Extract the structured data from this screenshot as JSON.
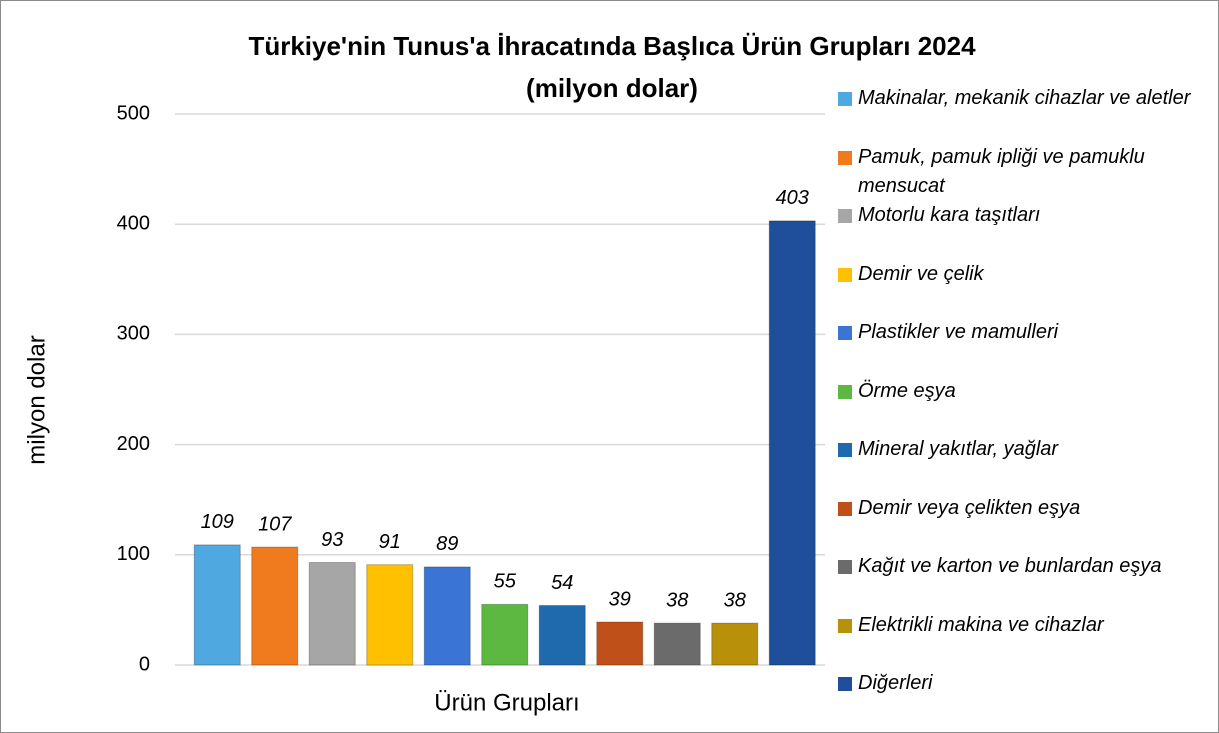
{
  "chart_data": {
    "type": "bar",
    "title": "Türkiye'nin Tunus'a İhracatında Başlıca Ürün Grupları 2024",
    "subtitle": "(milyon dolar)",
    "y_label": "milyon dolar",
    "x_label": "Ürün Grupları",
    "categories": [
      "Makinalar, mekanik cihazlar ve aletler",
      "Pamuk, pamuk ipliği ve pamuklu mensucat",
      "Motorlu kara taşıtları",
      "Demir ve çelik",
      "Plastikler ve mamulleri",
      "Örme eşya",
      "Mineral yakıtlar, yağlar",
      "Demir veya çelikten eşya",
      "Kağıt ve karton ve bunlardan eşya",
      "Elektrikli makina ve cihazlar",
      "Diğerleri"
    ],
    "values": [
      109,
      107,
      93,
      91,
      89,
      55,
      54,
      39,
      38,
      38,
      403
    ],
    "colors": [
      "#4fa8e0",
      "#f07a1e",
      "#a6a6a6",
      "#ffc000",
      "#3a75d6",
      "#5cb840",
      "#1f6aad",
      "#c0501a",
      "#6b6b6b",
      "#b8900a",
      "#1f4e9a"
    ],
    "ylim": [
      0,
      500
    ],
    "yticks": [
      0,
      100,
      200,
      300,
      400,
      500
    ],
    "grid": true,
    "legend": "right"
  }
}
